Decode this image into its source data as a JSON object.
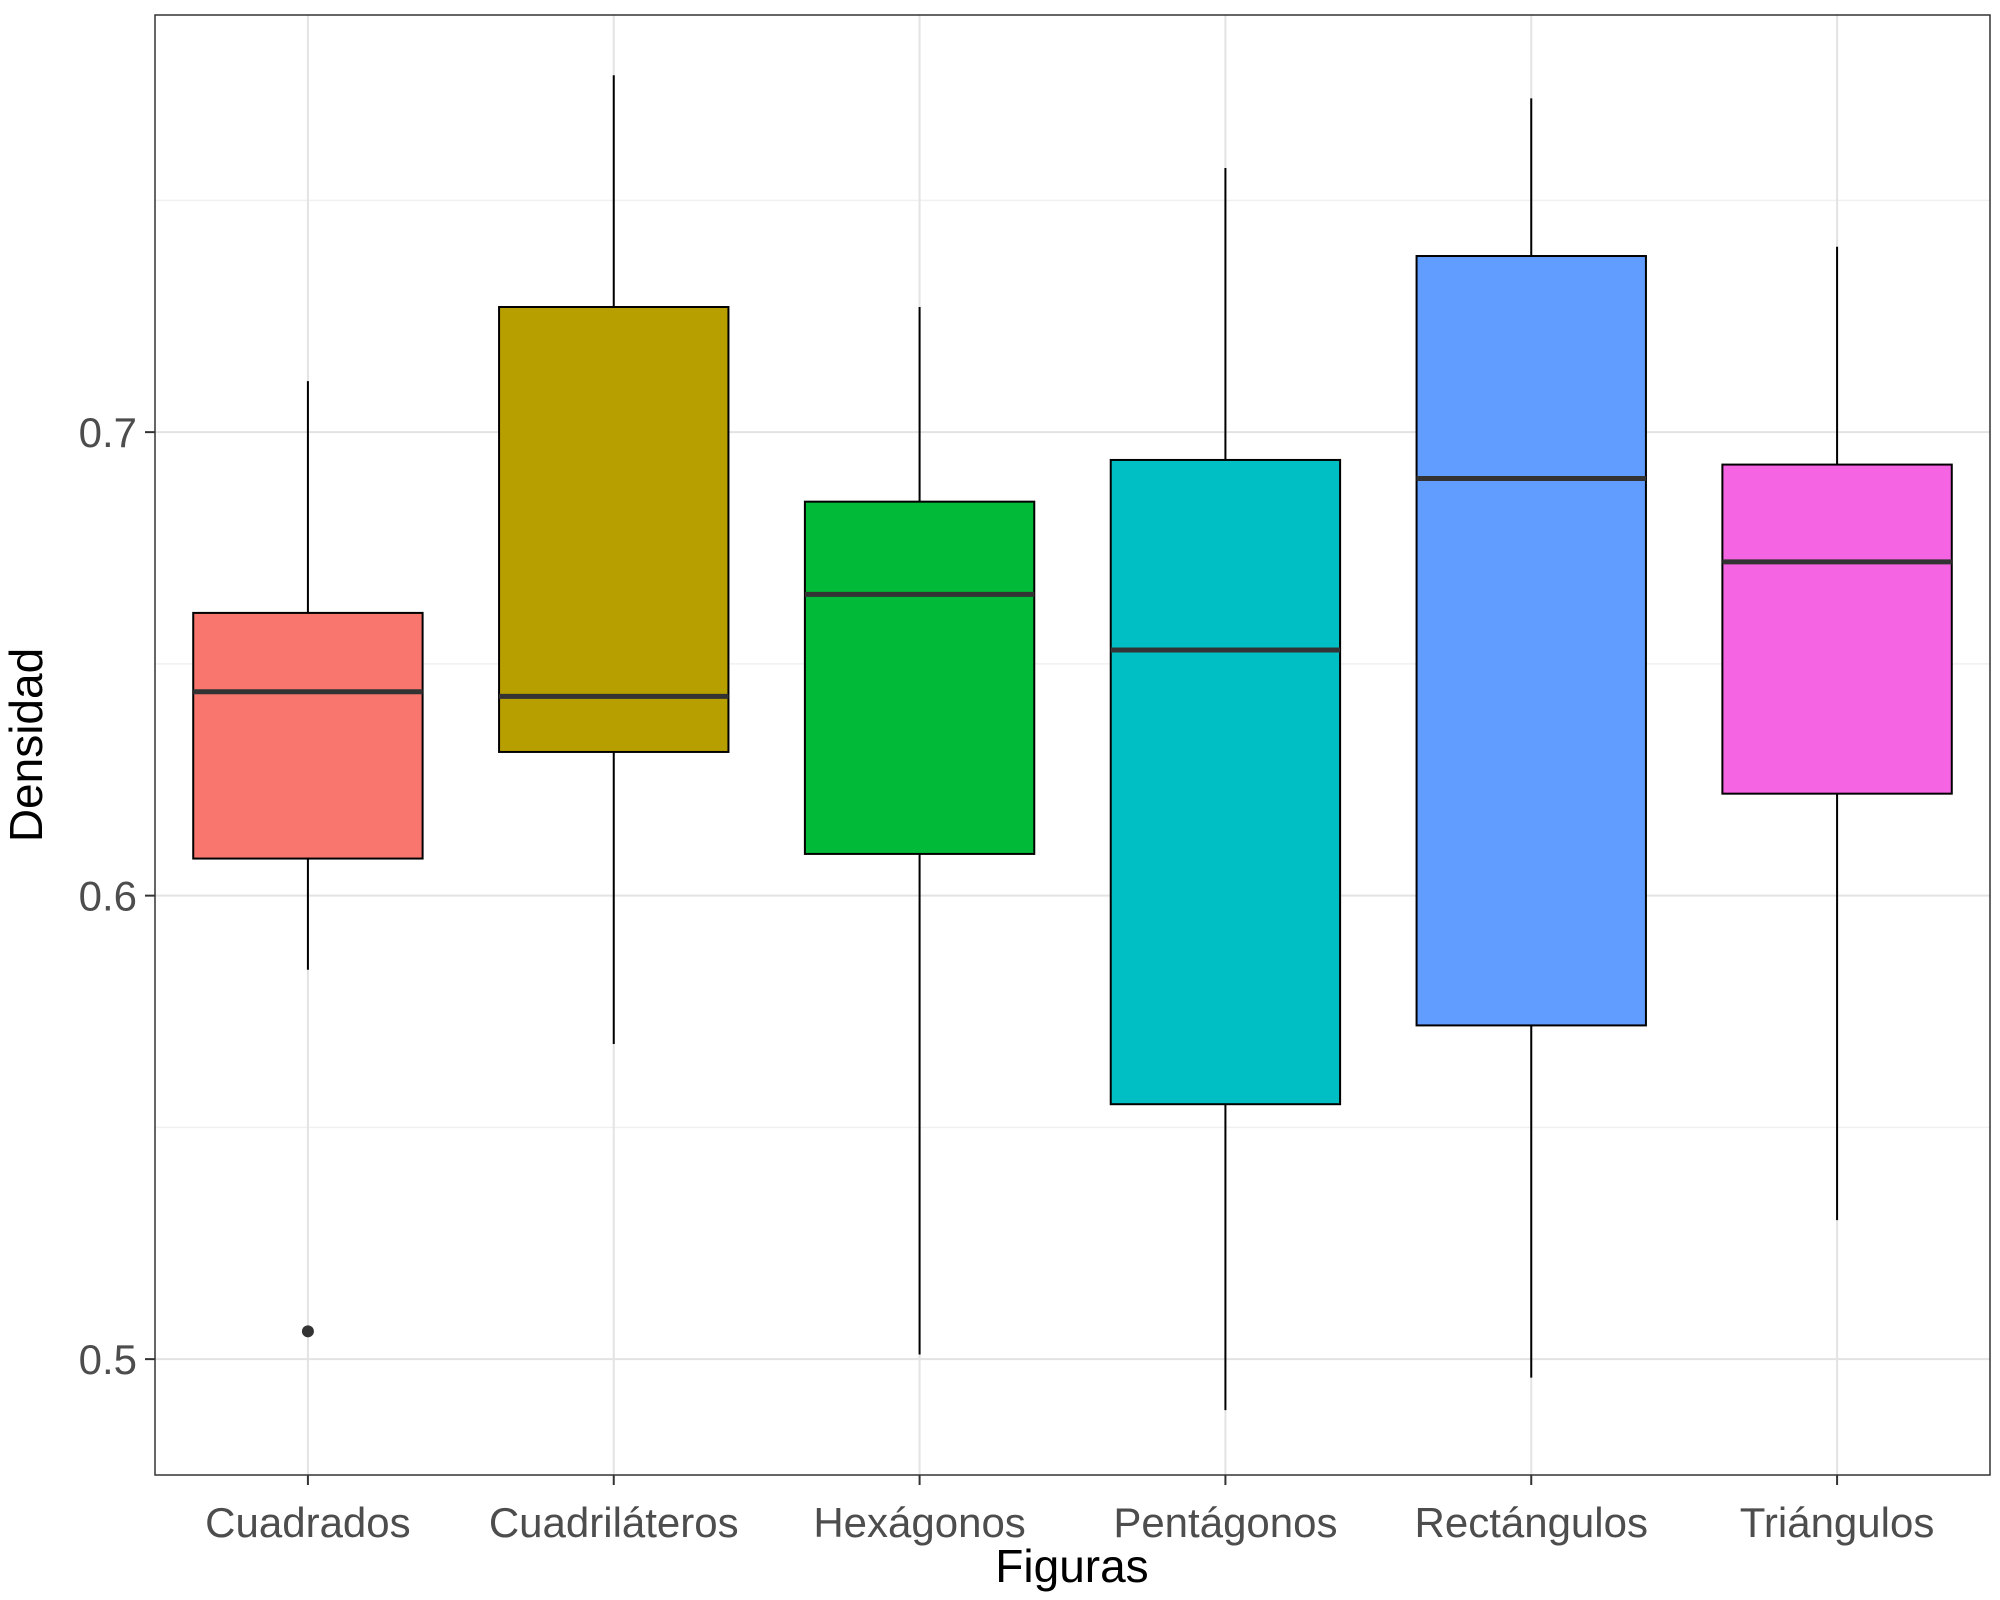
{
  "chart_data": {
    "type": "boxplot",
    "xlabel": "Figuras",
    "ylabel": "Densidad",
    "ylim": [
      0.475,
      0.79
    ],
    "yticks": [
      "0.5",
      "0.6",
      "0.7"
    ],
    "ytick_values": [
      0.5,
      0.6,
      0.7
    ],
    "minor_gridlines": [
      0.55,
      0.65,
      0.75
    ],
    "grid": true,
    "legend": "none",
    "categories": [
      "Cuadrados",
      "Cuadriláteros",
      "Hexágonos",
      "Pentágonos",
      "Rectángulos",
      "Triángulos"
    ],
    "boxes": [
      {
        "category": "Cuadrados",
        "color": "#F8766D",
        "whisker_low": 0.584,
        "q1": 0.608,
        "median": 0.644,
        "q3": 0.661,
        "whisker_high": 0.711,
        "outliers": [
          0.506
        ]
      },
      {
        "category": "Cuadriláteros",
        "color": "#B79F00",
        "whisker_low": 0.568,
        "q1": 0.631,
        "median": 0.643,
        "q3": 0.727,
        "whisker_high": 0.777,
        "outliers": []
      },
      {
        "category": "Hexágonos",
        "color": "#00BA38",
        "whisker_low": 0.501,
        "q1": 0.609,
        "median": 0.665,
        "q3": 0.685,
        "whisker_high": 0.727,
        "outliers": []
      },
      {
        "category": "Pentágonos",
        "color": "#00BFC4",
        "whisker_low": 0.489,
        "q1": 0.555,
        "median": 0.653,
        "q3": 0.694,
        "whisker_high": 0.757,
        "outliers": []
      },
      {
        "category": "Rectángulos",
        "color": "#619CFF",
        "whisker_low": 0.496,
        "q1": 0.572,
        "median": 0.69,
        "q3": 0.738,
        "whisker_high": 0.772,
        "outliers": []
      },
      {
        "category": "Triángulos",
        "color": "#F564E3",
        "whisker_low": 0.53,
        "q1": 0.622,
        "median": 0.672,
        "q3": 0.693,
        "whisker_high": 0.74,
        "outliers": []
      }
    ]
  }
}
